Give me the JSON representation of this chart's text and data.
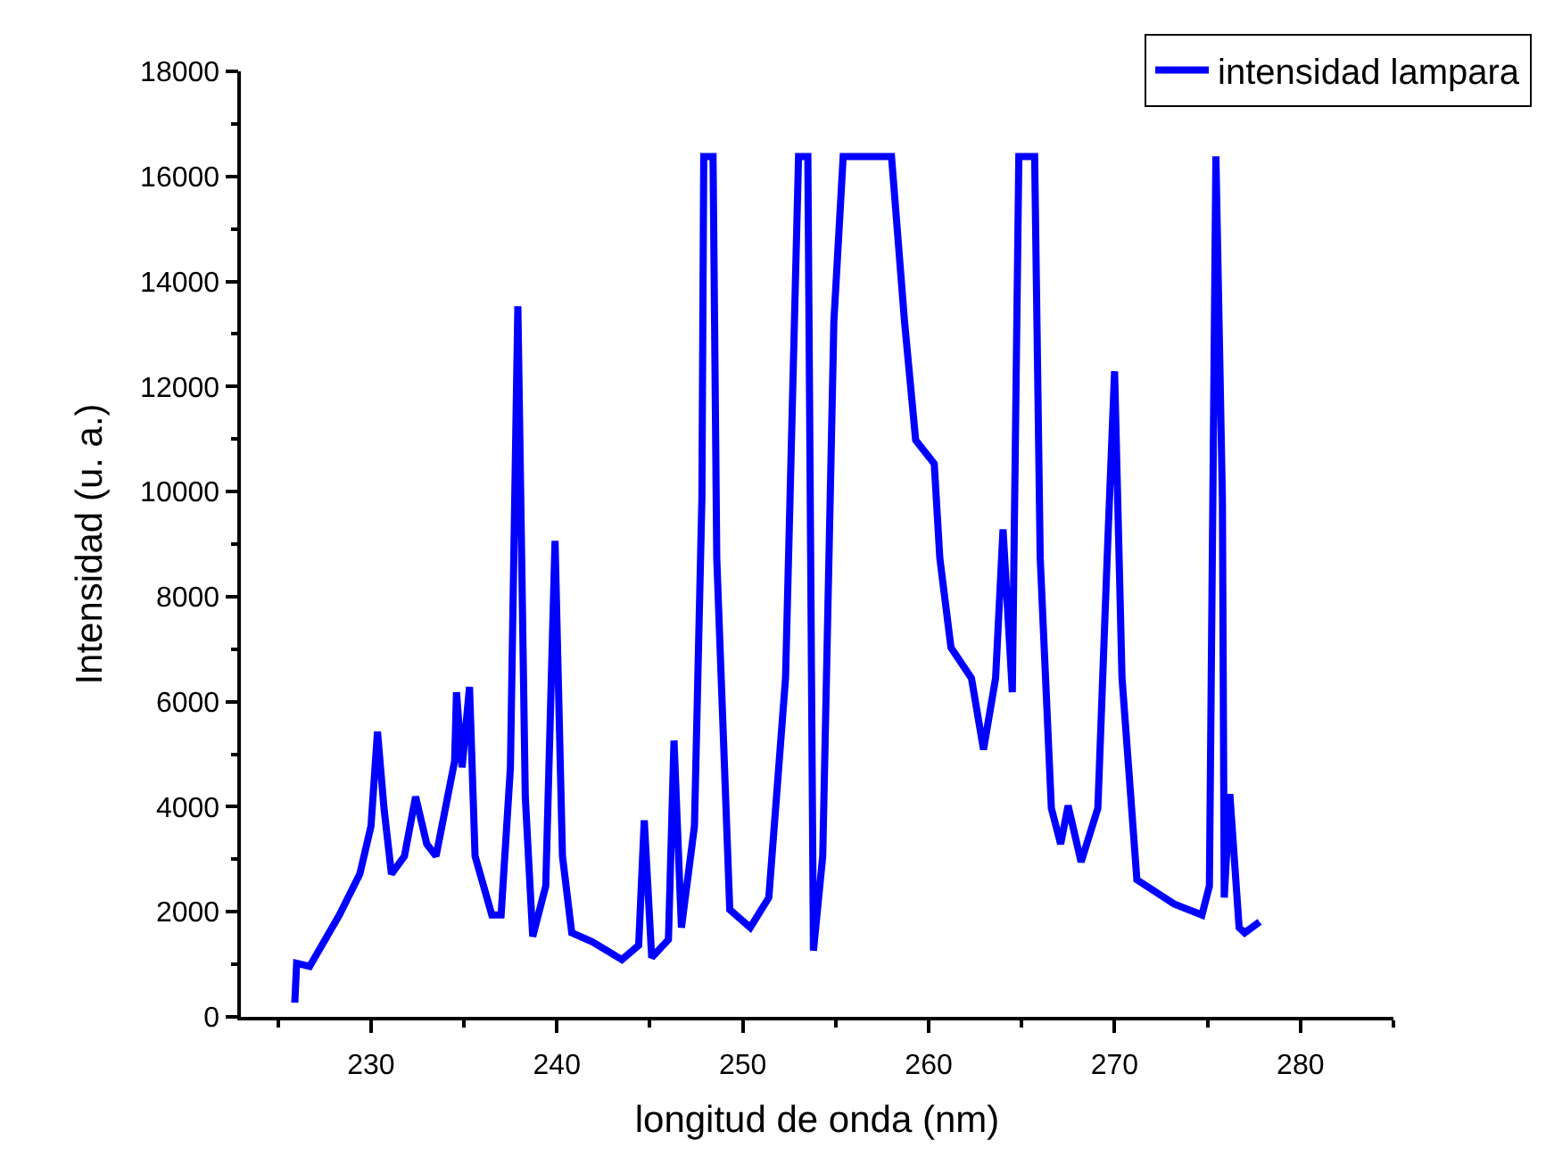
{
  "chart_data": {
    "type": "line",
    "xlabel": "longitud de onda (nm)",
    "ylabel": "Intensidad (u. a.)",
    "xlim": [
      223,
      285
    ],
    "xticks": [
      {
        "value": 225,
        "label": null
      },
      230,
      {
        "value": 235,
        "label": null
      },
      240,
      {
        "value": 245,
        "label": null
      },
      250,
      {
        "value": 255,
        "label": null
      },
      260,
      {
        "value": 265,
        "label": null
      },
      270,
      {
        "value": 275,
        "label": null
      },
      280,
      {
        "value": 285,
        "label": null
      }
    ],
    "ylim": [
      0,
      18000
    ],
    "yticks": [
      0,
      {
        "value": 1000,
        "label": null
      },
      2000,
      {
        "value": 3000,
        "label": null
      },
      4000,
      {
        "value": 5000,
        "label": null
      },
      6000,
      {
        "value": 7000,
        "label": null
      },
      8000,
      {
        "value": 9000,
        "label": null
      },
      10000,
      {
        "value": 11000,
        "label": null
      },
      12000,
      {
        "value": 13000,
        "label": null
      },
      14000,
      {
        "value": 15000,
        "label": null
      },
      16000,
      {
        "value": 17000,
        "label": null
      },
      18000
    ],
    "grid": false,
    "legend": "top right",
    "marker": "none",
    "line_style": "solid",
    "series": [
      {
        "name": "intensidad lampara",
        "color": "#0000ff",
        "x": [
          225.9,
          226.0,
          226.7,
          228.3,
          229.4,
          230.0,
          230.35,
          230.7,
          231.1,
          231.8,
          232.4,
          233.0,
          233.5,
          234.5,
          234.6,
          234.9,
          235.3,
          235.6,
          236.5,
          237.0,
          237.5,
          237.9,
          238.3,
          238.7,
          239.4,
          239.9,
          240.3,
          240.8,
          241.9,
          243.5,
          244.4,
          244.7,
          245.1,
          246.0,
          246.3,
          246.7,
          247.4,
          247.8,
          247.9,
          248.4,
          248.6,
          249.3,
          250.4,
          251.4,
          252.3,
          253.0,
          253.5,
          253.8,
          254.3,
          254.9,
          255.4,
          258.0,
          258.7,
          259.3,
          260.3,
          260.6,
          261.2,
          262.3,
          262.95,
          263.6,
          264.0,
          264.5,
          264.85,
          265.7,
          266.0,
          266.6,
          267.1,
          267.5,
          268.2,
          269.1,
          269.6,
          270.0,
          270.4,
          271.2,
          273.2,
          274.7,
          275.1,
          275.45,
          275.8,
          275.9,
          276.2,
          276.7,
          277.0,
          277.8
        ],
        "values": [
          270,
          1020,
          960,
          1940,
          2720,
          3630,
          5430,
          3970,
          2720,
          3060,
          4190,
          3290,
          3060,
          4870,
          6180,
          4750,
          6280,
          3060,
          1940,
          1940,
          4750,
          13530,
          4190,
          1530,
          2490,
          9060,
          3060,
          1600,
          1430,
          1090,
          1360,
          3740,
          1130,
          1470,
          5260,
          1700,
          3630,
          9850,
          16380,
          16380,
          8730,
          2040,
          1700,
          2270,
          6450,
          16380,
          16380,
          1260,
          3060,
          13240,
          16380,
          16380,
          13240,
          10980,
          10530,
          8730,
          7030,
          6450,
          5090,
          6450,
          9280,
          6180,
          16380,
          16380,
          8730,
          3970,
          3290,
          4020,
          2950,
          3970,
          8730,
          12290,
          6450,
          2610,
          2150,
          1940,
          2490,
          16380,
          9850,
          2270,
          4240,
          1700,
          1600,
          1810
        ]
      }
    ]
  }
}
